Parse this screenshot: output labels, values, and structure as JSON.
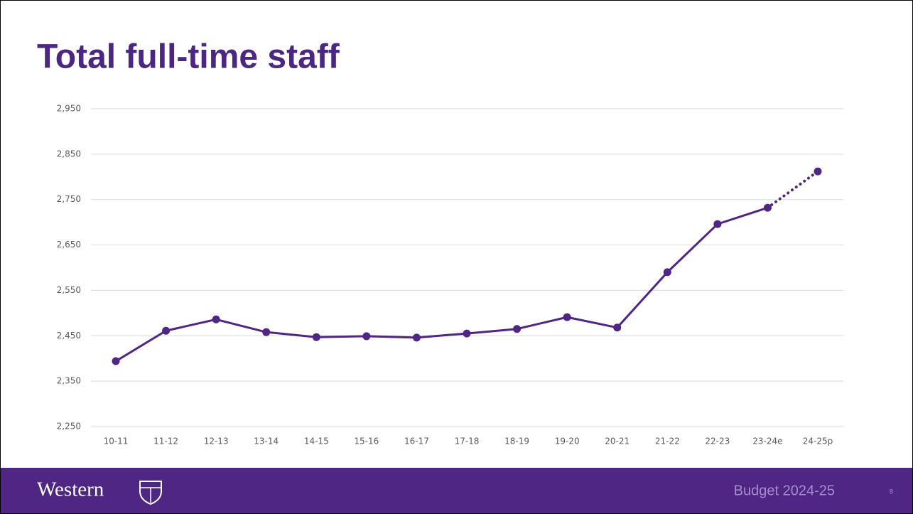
{
  "chart_data": {
    "type": "line",
    "title": "Total full-time staff",
    "categories": [
      "10-11",
      "11-12",
      "12-13",
      "13-14",
      "14-15",
      "15-16",
      "16-17",
      "17-18",
      "18-19",
      "19-20",
      "20-21",
      "21-22",
      "22-23",
      "23-24e",
      "24-25p"
    ],
    "values": [
      2394,
      2461,
      2486,
      2458,
      2447,
      2449,
      2446,
      2455,
      2465,
      2491,
      2468,
      2590,
      2696,
      2732,
      2812
    ],
    "color": "#4f2683",
    "dotted_last_segments": 1,
    "ylim": [
      2250,
      2950
    ],
    "yticks": [
      {
        "value": 2250,
        "label": "2,250"
      },
      {
        "value": 2350,
        "label": "2,350"
      },
      {
        "value": 2450,
        "label": "2,450"
      },
      {
        "value": 2550,
        "label": "2,550"
      },
      {
        "value": 2650,
        "label": "2,650"
      },
      {
        "value": 2750,
        "label": "2,750"
      },
      {
        "value": 2850,
        "label": "2,850"
      },
      {
        "value": 2950,
        "label": "2,950"
      }
    ],
    "grid": true
  },
  "footer": {
    "brand": "Western",
    "text": "Budget 2024-25",
    "page": "8"
  }
}
